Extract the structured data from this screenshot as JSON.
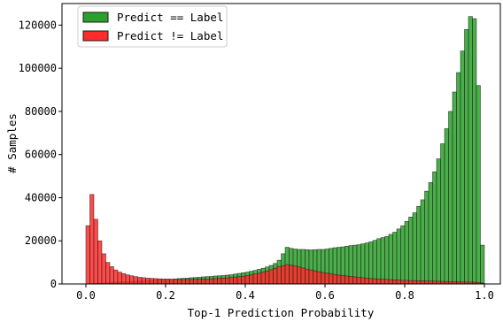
{
  "chart_data": {
    "type": "bar",
    "stacking": "overlay",
    "xlabel": "Top-1 Prediction Probability",
    "ylabel": "# Samples",
    "xlim": [
      -0.06,
      1.04
    ],
    "ylim": [
      0,
      130000
    ],
    "xticks": [
      0.0,
      0.2,
      0.4,
      0.6,
      0.8,
      1.0
    ],
    "xtick_labels": [
      "0.0",
      "0.2",
      "0.4",
      "0.6",
      "0.8",
      "1.0"
    ],
    "yticks": [
      0,
      20000,
      40000,
      60000,
      80000,
      100000,
      120000
    ],
    "ytick_labels": [
      "0",
      "20000",
      "40000",
      "60000",
      "80000",
      "100000",
      "120000"
    ],
    "grid": false,
    "legend_position": "top-left",
    "bin_width": 0.01,
    "bin_start": 0.0,
    "bin_count": 100,
    "series": [
      {
        "name": "Predict == Label",
        "color": "#2ca02c",
        "edge_color": "#1a1a1a",
        "values": [
          100,
          200,
          300,
          400,
          500,
          600,
          700,
          800,
          900,
          1000,
          1100,
          1200,
          1300,
          1400,
          1500,
          1600,
          1700,
          1800,
          1900,
          2000,
          2100,
          2200,
          2300,
          2500,
          2600,
          2700,
          2900,
          3000,
          3100,
          3300,
          3400,
          3500,
          3700,
          3800,
          3900,
          4100,
          4300,
          4600,
          4900,
          5200,
          5500,
          5900,
          6300,
          6800,
          7300,
          7900,
          8600,
          9500,
          11000,
          14000,
          17000,
          16500,
          16200,
          16000,
          16000,
          15900,
          15800,
          15900,
          16000,
          16000,
          16200,
          16500,
          16800,
          17000,
          17200,
          17500,
          17800,
          18000,
          18200,
          18600,
          19000,
          19500,
          20200,
          21000,
          21500,
          22000,
          23000,
          24000,
          25500,
          27000,
          29000,
          31000,
          33000,
          36000,
          39000,
          43000,
          47000,
          52000,
          58000,
          65000,
          72000,
          80000,
          89000,
          98000,
          108000,
          118000,
          124000,
          123000,
          92000,
          18000
        ]
      },
      {
        "name": "Predict != Label",
        "color": "#ff2a2a",
        "edge_color": "#1a1a1a",
        "values": [
          27000,
          41500,
          30000,
          20000,
          14000,
          10000,
          8000,
          6500,
          5500,
          4800,
          4200,
          3800,
          3400,
          3100,
          2900,
          2700,
          2600,
          2500,
          2400,
          2300,
          2300,
          2200,
          2200,
          2100,
          2100,
          2100,
          2100,
          2200,
          2200,
          2300,
          2300,
          2400,
          2500,
          2600,
          2700,
          2800,
          3000,
          3200,
          3400,
          3600,
          3900,
          4200,
          4600,
          5000,
          5500,
          6000,
          6600,
          7300,
          8000,
          8500,
          9000,
          8700,
          8300,
          7900,
          7400,
          6900,
          6500,
          6100,
          5700,
          5300,
          5000,
          4700,
          4400,
          4100,
          3900,
          3700,
          3500,
          3300,
          3100,
          2900,
          2700,
          2500,
          2400,
          2300,
          2200,
          2100,
          2000,
          1900,
          1800,
          1700,
          1650,
          1600,
          1550,
          1500,
          1450,
          1400,
          1350,
          1300,
          1250,
          1200,
          1150,
          1100,
          1050,
          1000,
          950,
          900,
          850,
          800,
          700,
          400
        ]
      }
    ]
  }
}
